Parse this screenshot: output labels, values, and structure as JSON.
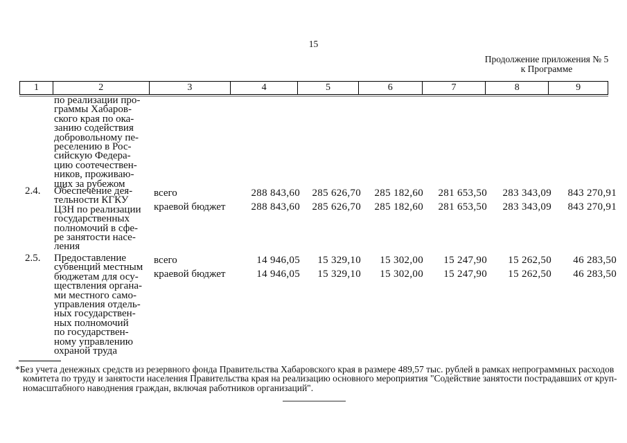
{
  "page": {
    "number": "15"
  },
  "continuation": {
    "line1": "Продолжение приложения № 5",
    "line2": "к Программе"
  },
  "table": {
    "header_cols": [
      "1",
      "2",
      "3",
      "4",
      "5",
      "6",
      "7",
      "8",
      "9"
    ],
    "carryover_lines": [
      "по реализации про-",
      "граммы Хабаров-",
      "ского края по ока-",
      "занию содействия",
      "добровольному пе-",
      "реселению в Рос-",
      "сийскую Федера-",
      "цию соотечествен-",
      "ников, проживаю-",
      "щих за рубежом"
    ],
    "rows": [
      {
        "num": "2.4.",
        "name_lines": [
          "Обеспечение дея-",
          "тельности КГКУ",
          "ЦЗН по реализации",
          "государственных",
          "полномочий в сфе-",
          "ре занятости насе-",
          "ления"
        ],
        "sources": [
          "всего",
          "краевой бюджет"
        ],
        "values": [
          [
            "288 843,60",
            "285 626,70",
            "285 182,60",
            "281 653,50",
            "283 343,09",
            "843 270,91"
          ],
          [
            "288 843,60",
            "285 626,70",
            "285 182,60",
            "281 653,50",
            "283 343,09",
            "843 270,91"
          ]
        ]
      },
      {
        "num": "2.5.",
        "name_lines": [
          "Предоставление",
          "субвенций местным",
          "бюджетам для осу-",
          "ществления органа-",
          "ми местного само-",
          "управления отдель-",
          "ных государствен-",
          "ных полномочий",
          "по государствен-",
          "ному управлению",
          "охраной труда"
        ],
        "sources": [
          "всего",
          "краевой бюджет"
        ],
        "values": [
          [
            "14 946,05",
            "15 329,10",
            "15 302,00",
            "15 247,90",
            "15 262,50",
            "46 283,50"
          ],
          [
            "14 946,05",
            "15 329,10",
            "15 302,00",
            "15 247,90",
            "15 262,50",
            "46 283,50"
          ]
        ]
      }
    ]
  },
  "footnote": {
    "lines": [
      "*Без учета денежных средств из резервного фонда Правительства Хабаровского края в размере 489,57 тыс. рублей в рамках непрограммных расходов",
      "комитета по труду и занятости населения Правительства края на реализацию основного мероприятия \"Содействие занятости пострадавших от круп-",
      "номасштабного наводнения граждан, включая работников организаций\"."
    ]
  }
}
